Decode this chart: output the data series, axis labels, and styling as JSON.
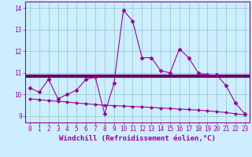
{
  "xlabel": "Windchill (Refroidissement éolien,°C)",
  "x": [
    0,
    1,
    2,
    3,
    4,
    5,
    6,
    7,
    8,
    9,
    10,
    11,
    12,
    13,
    14,
    15,
    16,
    17,
    18,
    19,
    20,
    21,
    22,
    23
  ],
  "y_line1": [
    10.3,
    10.1,
    10.7,
    9.8,
    10.0,
    10.2,
    10.7,
    10.8,
    9.1,
    10.5,
    13.9,
    13.4,
    11.7,
    11.7,
    11.1,
    11.0,
    12.1,
    11.7,
    11.0,
    10.9,
    10.9,
    10.4,
    9.6,
    9.1
  ],
  "y_line2": [
    9.8,
    9.75,
    9.72,
    9.68,
    9.65,
    9.6,
    9.57,
    9.53,
    9.5,
    9.48,
    9.46,
    9.44,
    9.42,
    9.4,
    9.37,
    9.35,
    9.32,
    9.3,
    9.27,
    9.24,
    9.2,
    9.16,
    9.1,
    9.05
  ],
  "y_hline": 10.85,
  "line_color": "#990099",
  "hline_color": "#660066",
  "bg_color": "#cceeff",
  "grid_color": "#99cccc",
  "ylim": [
    8.7,
    14.3
  ],
  "xlim": [
    -0.5,
    23.5
  ],
  "yticks": [
    9,
    10,
    11,
    12,
    13,
    14
  ],
  "xticks": [
    0,
    1,
    2,
    3,
    4,
    5,
    6,
    7,
    8,
    9,
    10,
    11,
    12,
    13,
    14,
    15,
    16,
    17,
    18,
    19,
    20,
    21,
    22,
    23
  ],
  "tick_fontsize": 5.5,
  "xlabel_fontsize": 6.5
}
